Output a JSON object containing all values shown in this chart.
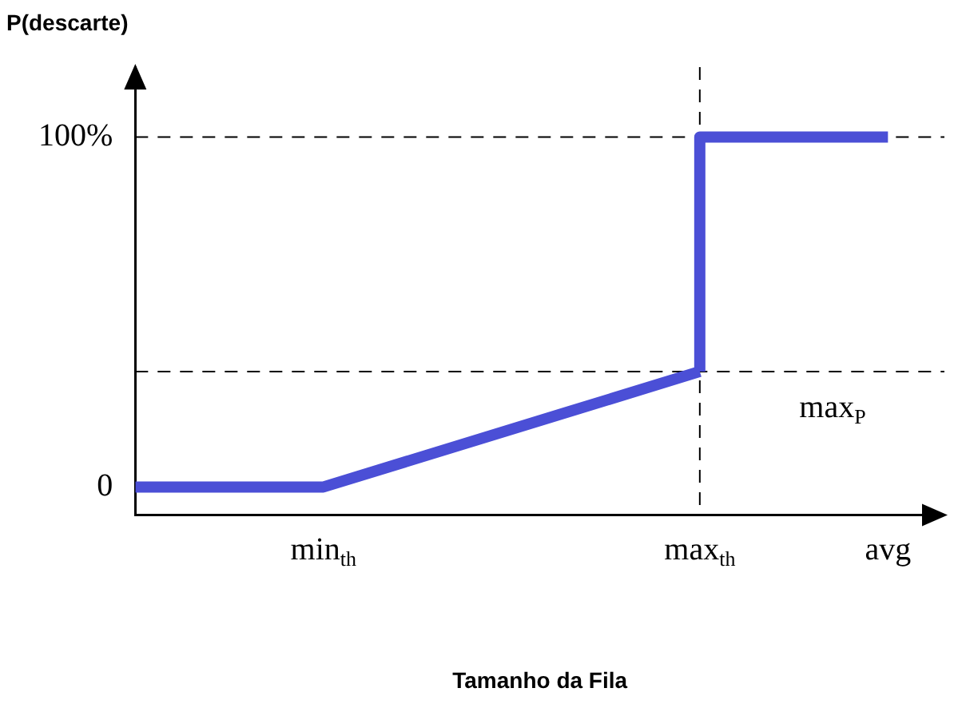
{
  "chart_data": {
    "type": "line",
    "ylabel": "P(descarte)",
    "xlabel": "Tamanho da Fila",
    "categories": [
      null,
      null,
      "min$_{th}$",
      null,
      null,
      null,
      "max$_{th}$",
      null,
      "avg"
    ],
    "ylim": [
      -8,
      120
    ],
    "yticks": [
      0,
      {
        "value": 100,
        "label": "100%"
      }
    ],
    "series": [
      {
        "color": "#4b4fd6",
        "values": [
          0,
          null,
          0,
          null,
          null,
          null,
          33,
          null,
          null
        ]
      },
      {
        "color": "#4b4fd6",
        "x": [
          "max$_{th}$",
          "max$_{th}$",
          "avg"
        ],
        "values": [
          33,
          100,
          100
        ]
      }
    ],
    "ref_lines": [
      {
        "axis": "y",
        "value": 100,
        "line_style": "dashed",
        "color": "#000000"
      },
      {
        "axis": "y",
        "value": 33,
        "line_style": "dashed",
        "color": "#000000"
      },
      {
        "axis": "x",
        "value": "max$_{th}$",
        "line_style": "dashed",
        "color": "#000000"
      }
    ],
    "annotations": [
      "max$_{P}$"
    ],
    "grid": false,
    "legend": false,
    "marker": "none",
    "line_style": "solid"
  }
}
